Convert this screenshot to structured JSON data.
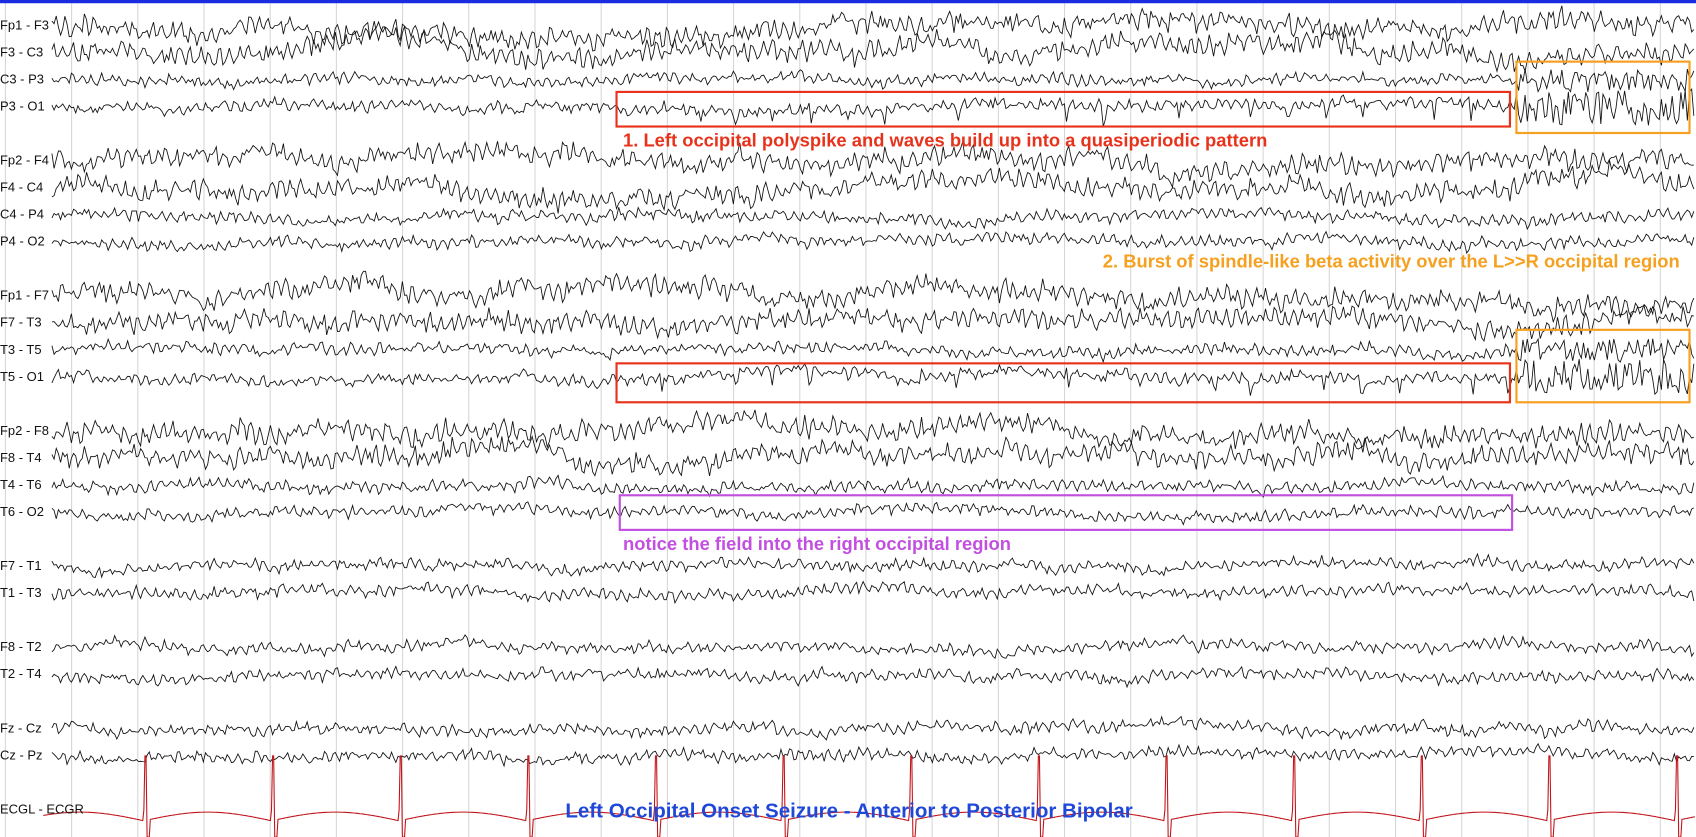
{
  "channels": [
    "Fp1 - F3",
    "F3 - C3",
    "C3 - P3",
    "P3 - O1",
    "Fp2 - F4",
    "F4 - C4",
    "C4 - P4",
    "P4 - O2",
    "Fp1 - F7",
    "F7 - T3",
    "T3 - T5",
    "T5 - O1",
    "Fp2 - F8",
    "F8 - T4",
    "T4 - T6",
    "T6 - O2",
    "F7 - T1",
    "T1 - T3",
    "F8 - T2",
    "T2 - T4",
    "Fz - Cz",
    "Cz - Pz",
    "ECGL - ECGR"
  ],
  "annotations": [
    {
      "text": "1. Left occipital polyspike and waves build up into a quasiperiodic pattern",
      "color": "#e8331c"
    },
    {
      "text": "2. Burst of spindle-like beta activity over the L>>R occipital region",
      "color": "#f5a01e"
    },
    {
      "text": "notice the field into the right occipital region",
      "color": "#c24fe0"
    }
  ],
  "title": "Left Occipital Onset Seizure - Anterior to Posterior Bipolar"
}
